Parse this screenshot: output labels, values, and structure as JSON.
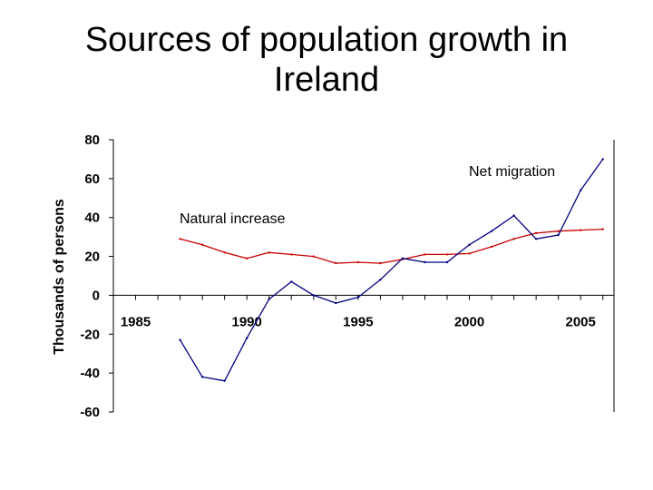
{
  "chart_data": {
    "type": "line",
    "title_lines": [
      "Sources of population growth in",
      "Ireland"
    ],
    "xlabel": "",
    "ylabel": "Thousands of persons",
    "ylim": [
      -60,
      80
    ],
    "yticks": [
      80,
      60,
      40,
      20,
      0,
      -20,
      -40,
      -60
    ],
    "xlim": [
      1984,
      2006.5
    ],
    "xticks": [
      1985,
      1990,
      1995,
      2000,
      2005
    ],
    "series": [
      {
        "name": "Natural increase",
        "color": "#cc0000",
        "x": [
          1987,
          1988,
          1989,
          1990,
          1991,
          1992,
          1993,
          1994,
          1995,
          1996,
          1997,
          1998,
          1999,
          2000,
          2001,
          2002,
          2003,
          2004,
          2005,
          2006
        ],
        "values": [
          29,
          26,
          22,
          19,
          22,
          21,
          20,
          16.5,
          17,
          16.5,
          18.5,
          21,
          21,
          21.5,
          25,
          29,
          32,
          33,
          33.5,
          34
        ]
      },
      {
        "name": "Net migration",
        "color": "#000080",
        "x": [
          1987,
          1988,
          1989,
          1990,
          1991,
          1992,
          1993,
          1994,
          1995,
          1996,
          1997,
          1998,
          1999,
          2000,
          2001,
          2002,
          2003,
          2004,
          2005,
          2006
        ],
        "values": [
          -23,
          -42,
          -44,
          -22,
          -2,
          7,
          0,
          -4,
          -1,
          8,
          19,
          17,
          17,
          26,
          33,
          41,
          29,
          31,
          54,
          70
        ]
      }
    ],
    "annotations": [
      {
        "text": "Net migration",
        "series": "Net migration"
      },
      {
        "text": "Natural increase",
        "series": "Natural increase"
      }
    ]
  }
}
